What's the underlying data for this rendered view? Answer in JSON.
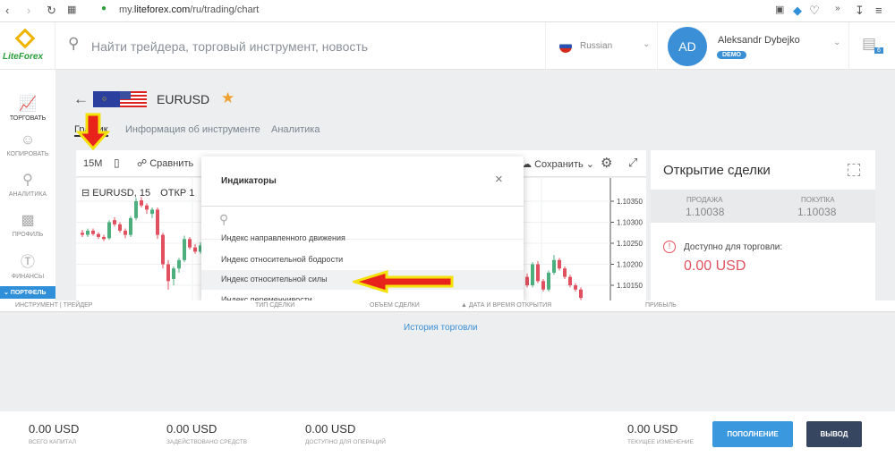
{
  "browser": {
    "url_prefix": "my.",
    "url_domain": "liteforex.com",
    "url_path": "/ru/trading/chart"
  },
  "header": {
    "logo": "LiteForex",
    "search_placeholder": "Найти трейдера, торговый инструмент, новость",
    "language": "Russian",
    "avatar_initials": "AD",
    "user_name": "Aleksandr Dybejko",
    "account_badge": "DEMO",
    "messages_count": "6"
  },
  "sidebar": {
    "items": [
      {
        "label": "ТОРГОВАТЬ"
      },
      {
        "label": "КОПИРОВАТЬ"
      },
      {
        "label": "АНАЛИТИКА"
      },
      {
        "label": "ПРОФИЛЬ"
      },
      {
        "label": "ФИНАНСЫ"
      }
    ],
    "portfolio": "ПОРТФЕЛЬ"
  },
  "instrument": {
    "symbol": "EURUSD",
    "tabs": [
      "График",
      "Информация об инструменте",
      "Аналитика"
    ]
  },
  "toolbar": {
    "interval": "15M",
    "compare": "Сравнить",
    "save": "Сохранить"
  },
  "chart": {
    "legend_symbol": "EURUSD",
    "legend_interval": "15",
    "legend_open": "ОТКР 1",
    "price_ticks": [
      "1.10350",
      "1.10300",
      "1.10250",
      "1.10200",
      "1.10150"
    ],
    "candles_left": [
      [
        1.10275,
        1.10282,
        1.10265,
        1.1027
      ],
      [
        1.1027,
        1.10285,
        1.10265,
        1.1028
      ],
      [
        1.1028,
        1.10285,
        1.10268,
        1.10272
      ],
      [
        1.10272,
        1.10276,
        1.1026,
        1.10265
      ],
      [
        1.10265,
        1.1027,
        1.10255,
        1.1026
      ],
      [
        1.10262,
        1.10305,
        1.10258,
        1.103
      ],
      [
        1.10305,
        1.10312,
        1.1029,
        1.10295
      ],
      [
        1.10295,
        1.103,
        1.10275,
        1.1028
      ],
      [
        1.1028,
        1.10285,
        1.10262,
        1.1027
      ],
      [
        1.1027,
        1.10315,
        1.10265,
        1.1031
      ],
      [
        1.1031,
        1.10358,
        1.10305,
        1.1035
      ],
      [
        1.10352,
        1.1036,
        1.10335,
        1.1034
      ],
      [
        1.1034,
        1.10345,
        1.1032,
        1.1033
      ],
      [
        1.1032,
        1.10335,
        1.1031,
        1.1033
      ],
      [
        1.1033,
        1.10335,
        1.1026,
        1.1027
      ],
      [
        1.1027,
        1.10275,
        1.1019,
        1.102
      ],
      [
        1.102,
        1.1021,
        1.1014,
        1.1016
      ],
      [
        1.10165,
        1.10195,
        1.1015,
        1.1019
      ],
      [
        1.1019,
        1.10215,
        1.1018,
        1.1021
      ],
      [
        1.1021,
        1.10268,
        1.10205,
        1.1026
      ],
      [
        1.1026,
        1.10265,
        1.10235,
        1.1024
      ],
      [
        1.1024,
        1.10248,
        1.10225,
        1.1023
      ],
      [
        1.1023,
        1.10252,
        1.10225,
        1.10245
      ]
    ],
    "candles_right": [
      [
        1.1015,
        1.10175,
        1.1014,
        1.1017
      ],
      [
        1.1017,
        1.10178,
        1.10145,
        1.1015
      ],
      [
        1.1015,
        1.10205,
        1.10145,
        1.102
      ],
      [
        1.102,
        1.10208,
        1.10155,
        1.1016
      ],
      [
        1.1016,
        1.10165,
        1.10135,
        1.1014
      ],
      [
        1.1014,
        1.10185,
        1.10135,
        1.1018
      ],
      [
        1.1018,
        1.10222,
        1.10175,
        1.1021
      ],
      [
        1.1021,
        1.10215,
        1.10185,
        1.1019
      ],
      [
        1.1019,
        1.10195,
        1.10165,
        1.1017
      ],
      [
        1.1017,
        1.10175,
        1.10145,
        1.1015
      ],
      [
        1.1015,
        1.10155,
        1.10135,
        1.1014
      ],
      [
        1.1014,
        1.10145,
        1.10115,
        1.1012
      ]
    ]
  },
  "indicators_dialog": {
    "title": "Индикаторы",
    "search_placeholder": "",
    "items": [
      "Индекс направленного движения",
      "Индекс относительной бодрости",
      "Индекс относительной силы",
      "Индекс переменчивости"
    ]
  },
  "trade_panel": {
    "title": "Открытие сделки",
    "sell_label": "ПРОДАЖА",
    "sell_price": "1.10038",
    "buy_label": "ПОКУПКА",
    "buy_price": "1.10038",
    "available_label": "Доступно для торговли:",
    "available_value": "0.00 USD"
  },
  "table": {
    "columns": [
      "ИНСТРУМЕНТ | ТРЕЙДЕР",
      "ТИП СДЕЛКИ",
      "ОБЪЕМ СДЕЛКИ",
      "▲ ДАТА И ВРЕМЯ ОТКРЫТИЯ",
      "ПРИБЫЛЬ"
    ],
    "history_link": "История торговли"
  },
  "footer": {
    "stats": [
      {
        "value": "0.00 USD",
        "label": "ВСЕГО КАПИТАЛ"
      },
      {
        "value": "0.00 USD",
        "label": "ЗАДЕЙСТВОВАНО СРЕДСТВ"
      },
      {
        "value": "0.00 USD",
        "label": "ДОСТУПНО ДЛЯ ОПЕРАЦИЙ"
      },
      {
        "value": "0.00 USD",
        "label": "ТЕКУЩЕЕ ИЗМЕНЕНИЕ"
      }
    ],
    "deposit": "ПОПОЛНЕНИЕ",
    "withdraw": "ВЫВОД"
  },
  "colors": {
    "accent": "#2f8fd8",
    "up": "#4caf7d",
    "down": "#e0505e",
    "annotation": "#e8231c",
    "highlight": "#f5e10a"
  }
}
